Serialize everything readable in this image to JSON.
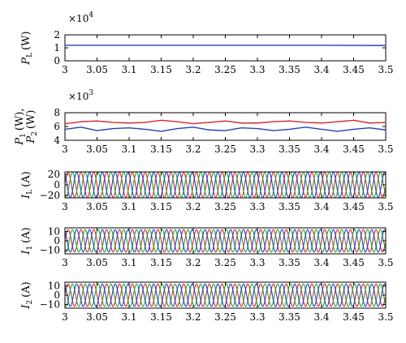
{
  "chart_data": [
    {
      "type": "line",
      "ylabel": {
        "main": "P",
        "sub": "L",
        "unit": "(W)"
      },
      "multiplier": {
        "base": "×10",
        "exp": "4"
      },
      "xlim": [
        3,
        3.5
      ],
      "ylim": [
        0,
        2
      ],
      "xticks": [
        "3",
        "3.05",
        "3.1",
        "3.15",
        "3.2",
        "3.25",
        "3.3",
        "3.35",
        "3.4",
        "3.45",
        "3.5"
      ],
      "yticks": [
        "0",
        "1",
        "2"
      ],
      "series": [
        {
          "color": "#2a3fb5",
          "x": [
            3,
            3.1,
            3.2,
            3.3,
            3.4,
            3.5
          ],
          "y": [
            1.2,
            1.2,
            1.2,
            1.2,
            1.2,
            1.18
          ]
        }
      ]
    },
    {
      "type": "line",
      "ylabel": {
        "line1_main": "P",
        "line1_sub": "1",
        "line1_unit": "(W),",
        "line2_main": "P",
        "line2_sub": "2",
        "line2_unit": "(W)"
      },
      "multiplier": {
        "base": "×10",
        "exp": "3"
      },
      "xlim": [
        3,
        3.5
      ],
      "ylim": [
        4,
        8
      ],
      "xticks": [
        "3",
        "3.05",
        "3.1",
        "3.15",
        "3.2",
        "3.25",
        "3.3",
        "3.35",
        "3.4",
        "3.45",
        "3.5"
      ],
      "yticks": [
        "4",
        "6",
        "8"
      ],
      "series": [
        {
          "color": "#d42a2a",
          "x": [
            3,
            3.025,
            3.05,
            3.075,
            3.1,
            3.125,
            3.15,
            3.175,
            3.2,
            3.225,
            3.25,
            3.275,
            3.3,
            3.325,
            3.35,
            3.375,
            3.4,
            3.425,
            3.45,
            3.475,
            3.5
          ],
          "y": [
            6.4,
            6.7,
            6.8,
            6.6,
            6.5,
            6.6,
            6.9,
            6.7,
            6.4,
            6.6,
            6.8,
            6.5,
            6.5,
            6.7,
            6.8,
            6.6,
            6.5,
            6.7,
            6.9,
            6.5,
            6.6
          ]
        },
        {
          "color": "#2a3fb5",
          "x": [
            3,
            3.025,
            3.05,
            3.075,
            3.1,
            3.125,
            3.15,
            3.175,
            3.2,
            3.225,
            3.25,
            3.275,
            3.3,
            3.325,
            3.35,
            3.375,
            3.4,
            3.425,
            3.45,
            3.475,
            3.5
          ],
          "y": [
            5.6,
            5.9,
            5.4,
            5.7,
            5.8,
            5.6,
            5.3,
            5.7,
            5.9,
            5.5,
            5.4,
            5.8,
            5.7,
            5.4,
            5.6,
            5.9,
            5.6,
            5.3,
            5.6,
            5.8,
            5.5
          ]
        }
      ]
    },
    {
      "type": "line",
      "ylabel": {
        "main": "I",
        "sub": "L",
        "unit": "(A)"
      },
      "xlim": [
        3,
        3.5
      ],
      "ylim": [
        -25,
        25
      ],
      "xticks": [
        "3",
        "3.05",
        "3.1",
        "3.15",
        "3.2",
        "3.25",
        "3.3",
        "3.35",
        "3.4",
        "3.45",
        "3.5"
      ],
      "yticks": [
        "−20",
        "0",
        "20"
      ],
      "ytick_values": [
        -20,
        0,
        20
      ],
      "waveform": {
        "shape": "three-phase sinusoid",
        "amplitude": 24,
        "frequency_hz": 50,
        "phase_shift_deg": 120
      },
      "series": [
        {
          "color": "#d42a2a",
          "phase_deg": 0
        },
        {
          "color": "#1fa83a",
          "phase_deg": -120
        },
        {
          "color": "#2a3fb5",
          "phase_deg": 120
        }
      ]
    },
    {
      "type": "line",
      "ylabel": {
        "main": "I",
        "sub": "1",
        "unit": "(A)"
      },
      "xlim": [
        3,
        3.5
      ],
      "ylim": [
        -14,
        14
      ],
      "xticks": [
        "3",
        "3.05",
        "3.1",
        "3.15",
        "3.2",
        "3.25",
        "3.3",
        "3.35",
        "3.4",
        "3.45",
        "3.5"
      ],
      "yticks": [
        "−10",
        "0",
        "10"
      ],
      "ytick_values": [
        -10,
        0,
        10
      ],
      "waveform": {
        "shape": "three-phase sinusoid",
        "amplitude": 12,
        "frequency_hz": 50,
        "phase_shift_deg": 120
      },
      "series": [
        {
          "color": "#d42a2a",
          "phase_deg": 0
        },
        {
          "color": "#1fa83a",
          "phase_deg": -120
        },
        {
          "color": "#2a3fb5",
          "phase_deg": 120
        }
      ]
    },
    {
      "type": "line",
      "ylabel": {
        "main": "I",
        "sub": "2",
        "unit": "(A)"
      },
      "xlim": [
        3,
        3.5
      ],
      "ylim": [
        -14,
        14
      ],
      "xticks": [
        "3",
        "3.05",
        "3.1",
        "3.15",
        "3.2",
        "3.25",
        "3.3",
        "3.35",
        "3.4",
        "3.45",
        "3.5"
      ],
      "yticks": [
        "−10",
        "0",
        "10"
      ],
      "ytick_values": [
        -10,
        0,
        10
      ],
      "waveform": {
        "shape": "three-phase sinusoid",
        "amplitude": 12,
        "frequency_hz": 50,
        "phase_shift_deg": 120
      },
      "series": [
        {
          "color": "#d42a2a",
          "phase_deg": 0
        },
        {
          "color": "#1fa83a",
          "phase_deg": -120
        },
        {
          "color": "#2a3fb5",
          "phase_deg": 120
        }
      ]
    }
  ]
}
